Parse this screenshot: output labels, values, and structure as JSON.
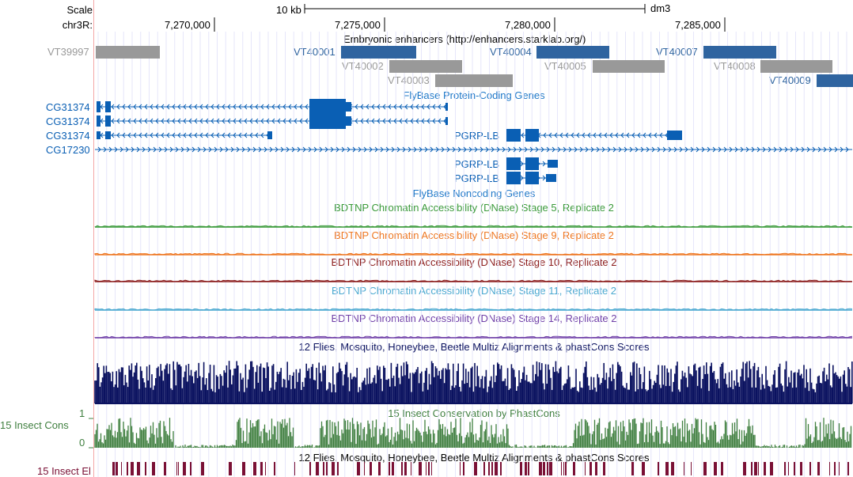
{
  "ruler": {
    "scale_label": "Scale",
    "chrom_label": "chr3R:",
    "scale_bar_label": "10 kb",
    "assembly": "dm3",
    "positions": [
      "7,270,000",
      "7,275,000",
      "7,280,000",
      "7,285,000"
    ]
  },
  "tracks": {
    "enhancers": {
      "title": "Embryonic enhancers (http://enhancers.starklab.org/)",
      "items": [
        {
          "label": "VT39997",
          "color": "#999999"
        },
        {
          "label": "VT40001",
          "color": "#2f64a0"
        },
        {
          "label": "VT40002",
          "color": "#999999"
        },
        {
          "label": "VT40003",
          "color": "#999999"
        },
        {
          "label": "VT40004",
          "color": "#2f64a0"
        },
        {
          "label": "VT40005",
          "color": "#999999"
        },
        {
          "label": "VT40007",
          "color": "#2f64a0"
        },
        {
          "label": "VT40008",
          "color": "#999999"
        },
        {
          "label": "VT40009",
          "color": "#2f64a0"
        }
      ]
    },
    "protein_coding": {
      "title": "FlyBase Protein-Coding Genes",
      "color": "#0a5fb4",
      "genes": [
        {
          "label": "CG31374"
        },
        {
          "label": "CG31374"
        },
        {
          "label": "CG31374"
        },
        {
          "label": "CG17230"
        },
        {
          "label": "PGRP-LB"
        },
        {
          "label": "PGRP-LB"
        },
        {
          "label": "PGRP-LB"
        }
      ]
    },
    "noncoding": {
      "title": "FlyBase Noncoding Genes",
      "color": "#1f78c8"
    },
    "dnase": [
      {
        "title": "BDTNP Chromatin Accessibility (DNase) Stage 5, Replicate 2",
        "color": "#3a9a3a"
      },
      {
        "title": "BDTNP Chromatin Accessibility (DNase) Stage 9, Replicate 2",
        "color": "#ee7722"
      },
      {
        "title": "BDTNP Chromatin Accessibility (DNase) Stage 10, Replicate 2",
        "color": "#8b1c1c"
      },
      {
        "title": "BDTNP Chromatin Accessibility (DNase) Stage 11, Replicate 2",
        "color": "#4aa8d0"
      },
      {
        "title": "BDTNP Chromatin Accessibility (DNase) Stage 14, Replicate 2",
        "color": "#7040a8"
      }
    ],
    "multiz": {
      "title": "12 Flies, Mosquito, Honeybee, Beetle Multiz Alignments & phastCons Scores",
      "color": "#0b1260"
    },
    "phastcons": {
      "title": "15 Insect Conservation by PhastCons",
      "side_label": "15 Insect Cons",
      "y_max": "1",
      "y_min": "0",
      "color": "#3f7f3f"
    },
    "elements": {
      "title": "12 Flies, Mosquito, Honeybee, Beetle Multiz Alignments & phastCons Scores",
      "side_label": "15 Insect El",
      "color": "#7a1035"
    }
  }
}
